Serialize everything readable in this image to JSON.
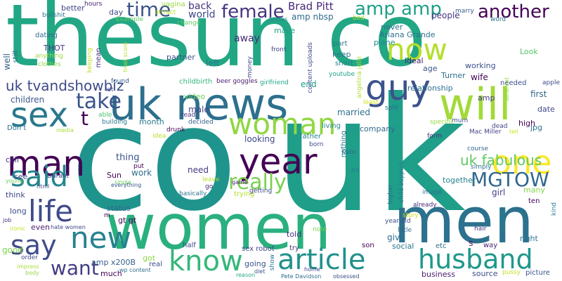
{
  "words": [
    {
      "text": "thesun co",
      "color": "#22a784"
    },
    {
      "text": "uk",
      "color": "#1f9e89"
    },
    {
      "text": "co",
      "color": "#1f948c"
    },
    {
      "text": "women",
      "color": "#2ab07f"
    },
    {
      "text": "men",
      "color": "#2c718e"
    },
    {
      "text": "uk news",
      "color": "#2d708e"
    },
    {
      "text": "will",
      "color": "#a2da37"
    },
    {
      "text": "guy",
      "color": "#3b528b"
    },
    {
      "text": "now",
      "color": "#b5de2b"
    },
    {
      "text": "sex",
      "color": "#2a788e"
    },
    {
      "text": "man",
      "color": "#440154"
    },
    {
      "text": "woman",
      "color": "#90d743"
    },
    {
      "text": "year",
      "color": "#440154"
    },
    {
      "text": "one",
      "color": "#fde725"
    },
    {
      "text": "said",
      "color": "#25858e"
    },
    {
      "text": "life",
      "color": "#3e4a89"
    },
    {
      "text": "new",
      "color": "#26828e"
    },
    {
      "text": "say",
      "color": "#3e4c8a"
    },
    {
      "text": "know",
      "color": "#35b779"
    },
    {
      "text": "article",
      "color": "#21918c"
    },
    {
      "text": "husband",
      "color": "#1f988b"
    },
    {
      "text": "really",
      "color": "#7ad151"
    },
    {
      "text": "take",
      "color": "#3b528b"
    },
    {
      "text": "want",
      "color": "#433e85"
    },
    {
      "text": "MGTOW",
      "color": "#31688e"
    },
    {
      "text": "another",
      "color": "#440154"
    },
    {
      "text": "amp amp",
      "color": "#1fa088"
    },
    {
      "text": "female",
      "color": "#46327e"
    },
    {
      "text": "time",
      "color": "#3b528b"
    },
    {
      "text": "t",
      "color": "#440154"
    },
    {
      "text": "uk fabulous",
      "color": "#5ec962"
    },
    {
      "text": "uk tvandshowbiz",
      "color": "#3e4a89"
    },
    {
      "text": "Brad Pitt",
      "color": "#482878"
    },
    {
      "text": "back",
      "color": "#46337e"
    },
    {
      "text": "world",
      "color": "#3f4889"
    },
    {
      "text": "amp nbsp",
      "color": "#306a8e"
    },
    {
      "text": "away",
      "color": "#472c7a"
    },
    {
      "text": "never",
      "color": "#2c738e"
    },
    {
      "text": "Ariana Grande",
      "color": "#2c718e"
    },
    {
      "text": "plane",
      "color": "#23888e"
    },
    {
      "text": "people",
      "color": "#453581"
    },
    {
      "text": "day",
      "color": "#3e4c8a"
    },
    {
      "text": "better",
      "color": "#404588"
    },
    {
      "text": "make",
      "color": "#1fa187"
    },
    {
      "text": "ideal",
      "color": "#482071"
    },
    {
      "text": "age",
      "color": "#39558c"
    },
    {
      "text": "working",
      "color": "#3b528b"
    },
    {
      "text": "Turner",
      "color": "#2e6d8e"
    },
    {
      "text": "wife",
      "color": "#440154"
    },
    {
      "text": "Look",
      "color": "#56c667"
    },
    {
      "text": "keep",
      "color": "#2c728e"
    },
    {
      "text": "left",
      "color": "#2a778e"
    },
    {
      "text": "partner",
      "color": "#3a538b"
    },
    {
      "text": "relationship",
      "color": "#2e6e8e"
    },
    {
      "text": "first",
      "color": "#306a8e"
    },
    {
      "text": "needed",
      "color": "#3b518b"
    },
    {
      "text": "date",
      "color": "#3f4788"
    },
    {
      "text": "amp",
      "color": "#453781"
    },
    {
      "text": "high",
      "color": "#440154"
    },
    {
      "text": "jpg",
      "color": "#2c728e"
    },
    {
      "text": "children",
      "color": "#39568c"
    },
    {
      "text": "video",
      "color": "#6ccd5a"
    },
    {
      "text": "male",
      "color": "#414487"
    },
    {
      "text": "married",
      "color": "#2d708e"
    },
    {
      "text": "thing",
      "color": "#3b528b"
    },
    {
      "text": "month",
      "color": "#2a788e"
    },
    {
      "text": "looking",
      "color": "#3e4989"
    },
    {
      "text": "company",
      "color": "#31688e"
    },
    {
      "text": "need",
      "color": "#443983"
    },
    {
      "text": "work",
      "color": "#2f6c8e"
    },
    {
      "text": "Sun",
      "color": "#440154"
    },
    {
      "text": "girl",
      "color": "#424086"
    },
    {
      "text": "many",
      "color": "#84d44b"
    },
    {
      "text": "together",
      "color": "#26818e"
    },
    {
      "text": "status",
      "color": "#31678e"
    },
    {
      "text": "gt gt",
      "color": "#440154"
    },
    {
      "text": "amp x200B",
      "color": "#355f8d"
    },
    {
      "text": "much",
      "color": "#450559"
    },
    {
      "text": "even",
      "color": "#481f70"
    },
    {
      "text": "give",
      "color": "#2e6e8e"
    },
    {
      "text": "going",
      "color": "#3a538b"
    },
    {
      "text": "sex robot",
      "color": "#404588"
    },
    {
      "text": "told",
      "color": "#46307e"
    },
    {
      "text": "social",
      "color": "#2c738e"
    },
    {
      "text": "business",
      "color": "#481b6d"
    },
    {
      "text": "source",
      "color": "#3d4d8a"
    },
    {
      "text": "right",
      "color": "#2b748e"
    },
    {
      "text": "etc",
      "color": "#2e6e8e"
    },
    {
      "text": "way",
      "color": "#482173"
    },
    {
      "text": "good",
      "color": "#7fd34e"
    },
    {
      "text": "long",
      "color": "#3b518b"
    },
    {
      "text": "think",
      "color": "#3f4788"
    },
    {
      "text": "see",
      "color": "#3e4989"
    },
    {
      "text": "call",
      "color": "#453581"
    },
    {
      "text": "Don t",
      "color": "#2c718e"
    },
    {
      "text": "got",
      "color": "#8bd646"
    },
    {
      "text": "real",
      "color": "#3b518b"
    },
    {
      "text": "half",
      "color": "#3f4889"
    },
    {
      "text": "try",
      "color": "#46327e"
    },
    {
      "text": "son",
      "color": "#440154"
    },
    {
      "text": "end",
      "color": "#1e9c89"
    },
    {
      "text": "part",
      "color": "#2a788e"
    },
    {
      "text": "short",
      "color": "#25848e"
    },
    {
      "text": "hours",
      "color": "#482374"
    },
    {
      "text": "bullshit",
      "color": "#2b758e"
    },
    {
      "text": "dating",
      "color": "#31688e"
    },
    {
      "text": "THOT",
      "color": "#46337e"
    },
    {
      "text": "anything",
      "color": "#9bd93c"
    },
    {
      "text": "clothes",
      "color": "#8bd646"
    },
    {
      "text": "still",
      "color": "#2e6d8e"
    },
    {
      "text": "well",
      "color": "#34618d"
    },
    {
      "text": "mean",
      "color": "#472f7d"
    },
    {
      "text": "Example",
      "color": "#5ec962"
    },
    {
      "text": "vagina",
      "color": "#9bd93c"
    },
    {
      "text": "attract",
      "color": "#b5de2b"
    },
    {
      "text": "change",
      "color": "#60ca60"
    },
    {
      "text": "bodies",
      "color": "#23898e"
    },
    {
      "text": "bed",
      "color": "#b8de29"
    },
    {
      "text": "marry",
      "color": "#365d8d"
    },
    {
      "text": "word",
      "color": "#2b758e"
    },
    {
      "text": "money",
      "color": "#3d4d8a"
    },
    {
      "text": "front",
      "color": "#404588"
    },
    {
      "text": "content uploads",
      "color": "#3e4c8a"
    },
    {
      "text": "youtube",
      "color": "#1fa188"
    },
    {
      "text": "angelina jolie",
      "color": "#addc30"
    },
    {
      "text": "beer goggles",
      "color": "#481d6f"
    },
    {
      "text": "girlfriend",
      "color": "#21a585"
    },
    {
      "text": "childbirth",
      "color": "#35b779"
    },
    {
      "text": "found",
      "color": "#375a8c"
    },
    {
      "text": "let",
      "color": "#3b518b"
    },
    {
      "text": "trust score",
      "color": "#b2dd2d"
    },
    {
      "text": "keeping",
      "color": "#bade28"
    },
    {
      "text": "able",
      "color": "#4ac16d"
    },
    {
      "text": "building",
      "color": "#2a778e"
    },
    {
      "text": "decided",
      "color": "#33638d"
    },
    {
      "text": "read",
      "color": "#46337e"
    },
    {
      "text": "drunk",
      "color": "#440154"
    },
    {
      "text": "idea",
      "color": "#b5de2b"
    },
    {
      "text": "living",
      "color": "#25848e"
    },
    {
      "text": "father",
      "color": "#26818e"
    },
    {
      "text": "born",
      "color": "#3d4d8a"
    },
    {
      "text": "least",
      "color": "#d0e11c"
    },
    {
      "text": "split",
      "color": "#2e6e8e"
    },
    {
      "text": "specific",
      "color": "#95d840"
    },
    {
      "text": "mum",
      "color": "#3b528b"
    },
    {
      "text": "dead",
      "color": "#3f4788"
    },
    {
      "text": "Mac Miller",
      "color": "#414487"
    },
    {
      "text": "tell",
      "color": "#c8e020"
    },
    {
      "text": "form",
      "color": "#472d7b"
    },
    {
      "text": "course",
      "color": "#31688e"
    },
    {
      "text": "simply",
      "color": "#2c738e"
    },
    {
      "text": "different",
      "color": "#8fd744"
    },
    {
      "text": "apple",
      "color": "#3e4c8a"
    },
    {
      "text": "instead",
      "color": "#26828e"
    },
    {
      "text": "kind",
      "color": "#287d8e"
    },
    {
      "text": "ten",
      "color": "#440154"
    },
    {
      "text": "hair",
      "color": "#46337e"
    },
    {
      "text": "picture",
      "color": "#3b528b"
    },
    {
      "text": "pussy",
      "color": "#c2df23"
    },
    {
      "text": "Pete Davidson",
      "color": "#2e6e8e"
    },
    {
      "text": "obsessed",
      "color": "#3d4d8a"
    },
    {
      "text": "home",
      "color": "#404588"
    },
    {
      "text": "diet",
      "color": "#3a538b"
    },
    {
      "text": "show",
      "color": "#2d708e"
    },
    {
      "text": "reason",
      "color": "#22a884"
    },
    {
      "text": "wp content",
      "color": "#2d708e"
    },
    {
      "text": "game",
      "color": "#481769"
    },
    {
      "text": "trying",
      "color": "#b5de2b"
    },
    {
      "text": "basically",
      "color": "#2c738e"
    },
    {
      "text": "getting",
      "color": "#3e4989"
    },
    {
      "text": "leave",
      "color": "#b8de29"
    },
    {
      "text": "go",
      "color": "#482979"
    },
    {
      "text": "everything",
      "color": "#3b528b"
    },
    {
      "text": "single",
      "color": "#6ccd5a"
    },
    {
      "text": "Durant",
      "color": "#3f4889"
    },
    {
      "text": "html",
      "color": "#3a538b"
    },
    {
      "text": "young",
      "color": "#6ccd5a"
    },
    {
      "text": "media",
      "color": "#a5db36"
    },
    {
      "text": "put",
      "color": "#440154"
    },
    {
      "text": "Kate",
      "color": "#2d708e"
    },
    {
      "text": "nothing",
      "color": "#2a788e"
    },
    {
      "text": "ex",
      "color": "#26828e"
    },
    {
      "text": "higher",
      "color": "#2c728e"
    },
    {
      "text": "child support",
      "color": "#2a788e"
    },
    {
      "text": "around",
      "color": "#1f9e89"
    },
    {
      "text": "image",
      "color": "#2c728e"
    },
    {
      "text": "already",
      "color": "#482878"
    },
    {
      "text": "story",
      "color": "#cde11d"
    },
    {
      "text": "year old",
      "color": "#3e4c8a"
    },
    {
      "text": "little",
      "color": "#31688e"
    },
    {
      "text": "note",
      "color": "#7ad151"
    },
    {
      "text": "hate women",
      "color": "#3f4788"
    },
    {
      "text": "ironic",
      "color": "#c0df25"
    },
    {
      "text": "job",
      "color": "#472c7a"
    },
    {
      "text": "order",
      "color": "#3e4a89"
    },
    {
      "text": "impress",
      "color": "#a5db36"
    },
    {
      "text": "body",
      "color": "#8fd744"
    },
    {
      "text": "m",
      "color": "#440154"
    },
    {
      "text": "S",
      "color": "#440154"
    }
  ]
}
